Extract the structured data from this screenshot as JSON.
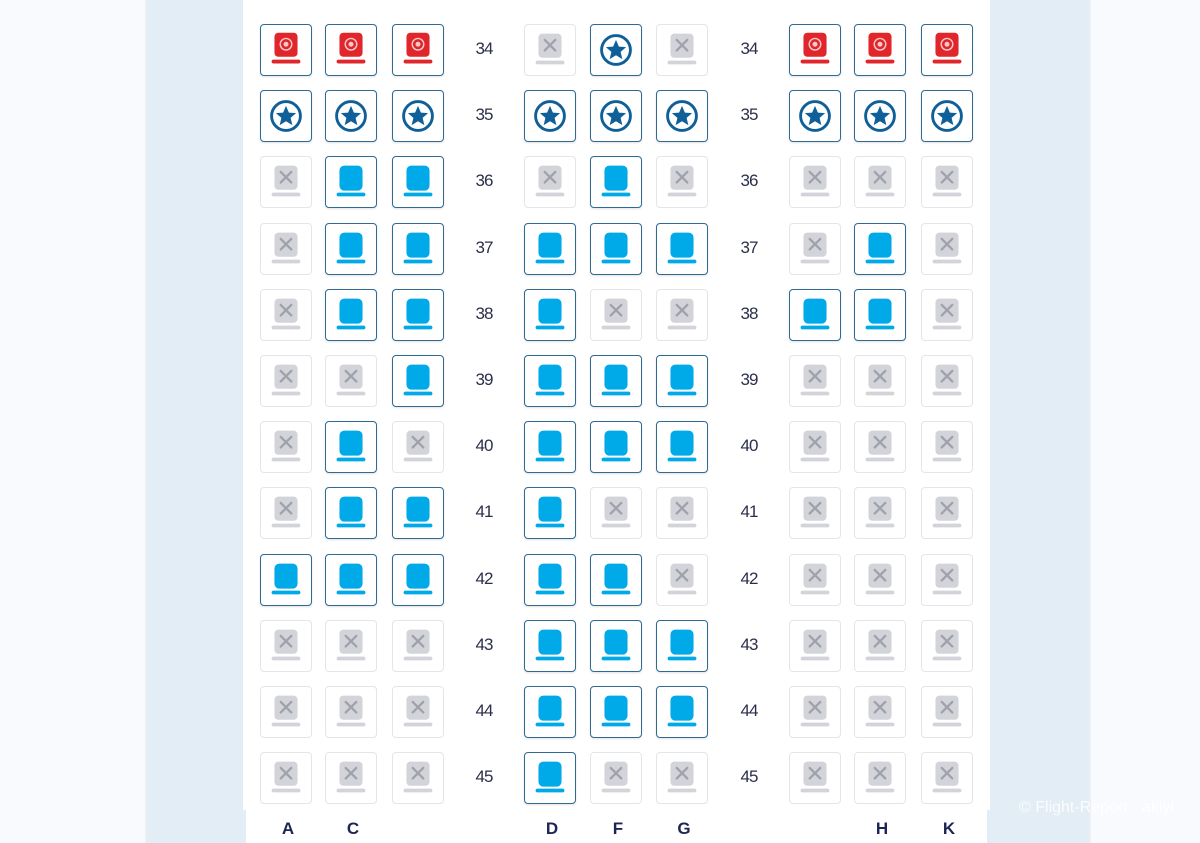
{
  "seat_map": {
    "columns": [
      "A",
      "C",
      "",
      "D",
      "F",
      "G",
      "",
      "H",
      "K"
    ],
    "legend_codes": {
      "P": "premium seat (red)",
      "S": "extra legroom seat (star)",
      "A": "available seat",
      "X": "unavailable seat"
    },
    "colors": {
      "premium": "#e0262b",
      "star": "#0f5f99",
      "available": "#00a9e8",
      "unavailable": "#d3d4da",
      "border": "#2e6a92"
    },
    "rows": [
      {
        "number": "34",
        "seats": [
          "P",
          "P",
          "P",
          "X",
          "S",
          "X",
          "P",
          "P",
          "P"
        ]
      },
      {
        "number": "35",
        "seats": [
          "S",
          "S",
          "S",
          "S",
          "S",
          "S",
          "S",
          "S",
          "S"
        ]
      },
      {
        "number": "36",
        "seats": [
          "X",
          "A",
          "A",
          "X",
          "A",
          "X",
          "X",
          "X",
          "X"
        ]
      },
      {
        "number": "37",
        "seats": [
          "X",
          "A",
          "A",
          "A",
          "A",
          "A",
          "X",
          "A",
          "X"
        ]
      },
      {
        "number": "38",
        "seats": [
          "X",
          "A",
          "A",
          "A",
          "X",
          "X",
          "A",
          "A",
          "X"
        ]
      },
      {
        "number": "39",
        "seats": [
          "X",
          "X",
          "A",
          "A",
          "A",
          "A",
          "X",
          "X",
          "X"
        ]
      },
      {
        "number": "40",
        "seats": [
          "X",
          "A",
          "X",
          "A",
          "A",
          "A",
          "X",
          "X",
          "X"
        ]
      },
      {
        "number": "41",
        "seats": [
          "X",
          "A",
          "A",
          "A",
          "X",
          "X",
          "X",
          "X",
          "X"
        ]
      },
      {
        "number": "42",
        "seats": [
          "A",
          "A",
          "A",
          "A",
          "A",
          "X",
          "X",
          "X",
          "X"
        ]
      },
      {
        "number": "43",
        "seats": [
          "X",
          "X",
          "X",
          "A",
          "A",
          "A",
          "X",
          "X",
          "X"
        ]
      },
      {
        "number": "44",
        "seats": [
          "X",
          "X",
          "X",
          "A",
          "A",
          "A",
          "X",
          "X",
          "X"
        ]
      },
      {
        "number": "45",
        "seats": [
          "X",
          "X",
          "X",
          "A",
          "X",
          "X",
          "X",
          "X",
          "X"
        ]
      }
    ]
  },
  "watermark": "© Flight-Report - akiyi"
}
